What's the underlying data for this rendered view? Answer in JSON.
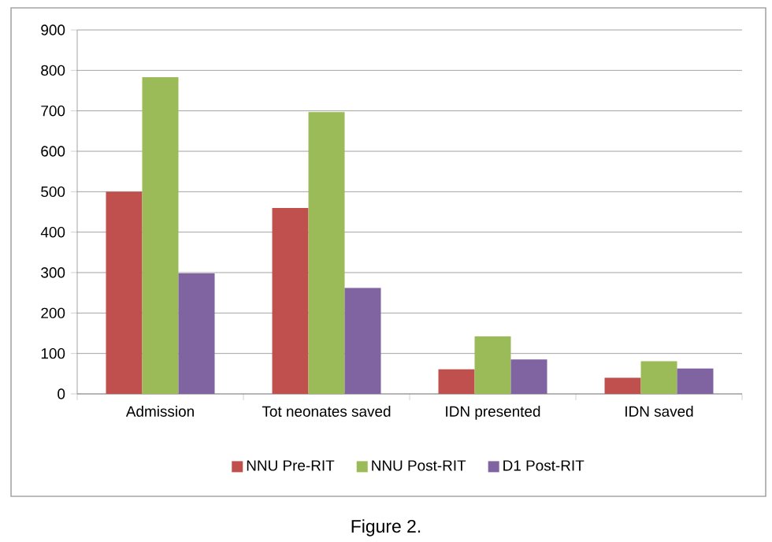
{
  "chart_data": {
    "type": "bar",
    "categories": [
      "Admission",
      "Tot neonates saved",
      "IDN presented",
      "IDN saved"
    ],
    "series": [
      {
        "name": "NNU Pre-RIT",
        "color": "#c0504d",
        "values": [
          500,
          460,
          61,
          40
        ]
      },
      {
        "name": "NNU Post-RIT",
        "color": "#9bbb59",
        "values": [
          783,
          697,
          142,
          81
        ]
      },
      {
        "name": "D1 Post-RIT",
        "color": "#8064a2",
        "values": [
          298,
          262,
          85,
          63
        ]
      }
    ],
    "ylim": [
      0,
      900
    ],
    "yticks": [
      0,
      100,
      200,
      300,
      400,
      500,
      600,
      700,
      800,
      900
    ],
    "grid": "y",
    "legend": "bottom",
    "annotations": [
      "Figure 2."
    ]
  }
}
